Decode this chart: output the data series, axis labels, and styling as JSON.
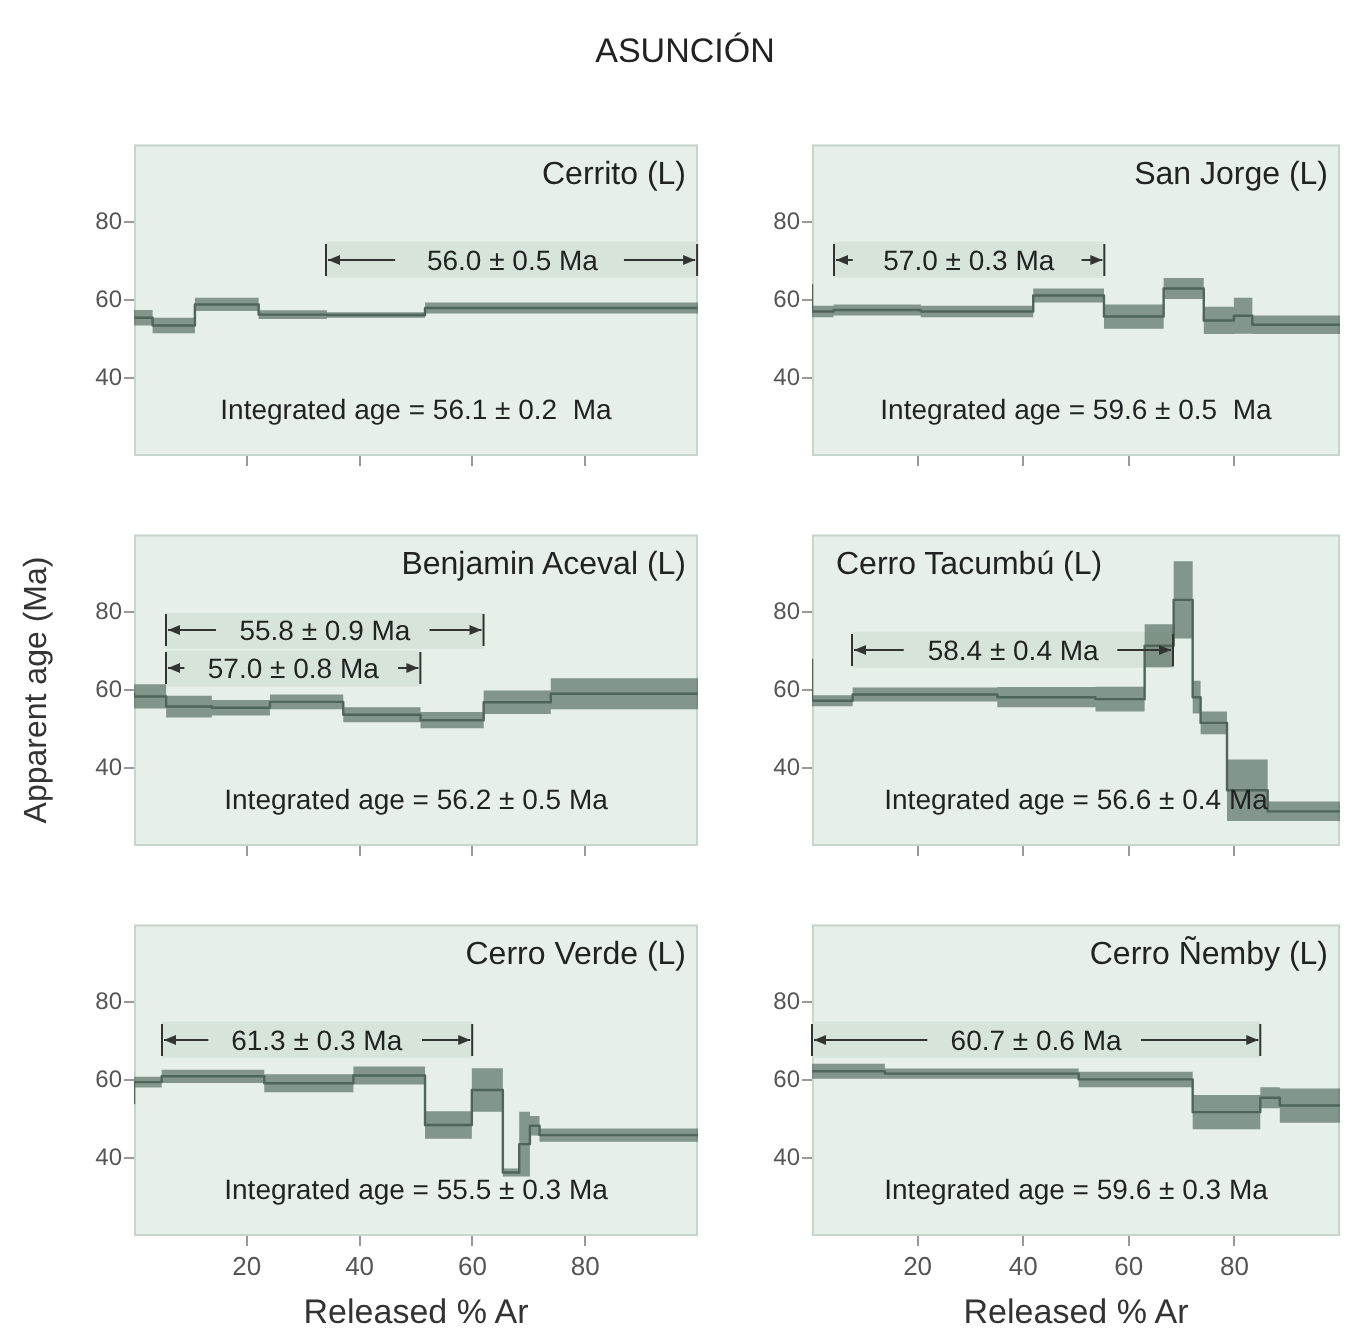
{
  "chart_data": [
    {
      "type": "step",
      "subtitle": "ASUNCIÓN",
      "title": "Cerrito (L)",
      "x": [
        0,
        3.3,
        10.8,
        22.1,
        34.2,
        51.6,
        88.1,
        100
      ],
      "xlim": [
        0,
        100
      ],
      "xticks": [
        20,
        40,
        60,
        80
      ],
      "ylim": [
        20,
        100
      ],
      "yticks": [
        40,
        60,
        80
      ],
      "tick_labels": "y",
      "series": [
        {
          "color": "#4f6659",
          "values": [
            55.7,
            55.5,
            53.5,
            58.9,
            56.3,
            56.2,
            58.0,
            58.0
          ],
          "lower": [
            51.4,
            53.5,
            51.5,
            57.2,
            55.2,
            55.5,
            56.6,
            56.6
          ],
          "upper": [
            60.0,
            57.5,
            55.5,
            60.6,
            57.4,
            56.9,
            59.4,
            59.4
          ]
        }
      ],
      "bands": [
        {
          "axis": "x",
          "from": 34.2,
          "to": 100,
          "label": "56.0 ± 0.5  Ma"
        }
      ],
      "annotations": [
        "Integrated age = 56.1 ± 0.2  Ma"
      ]
    },
    {
      "type": "step",
      "title": "San Jorge (L)",
      "x": [
        0,
        4.1,
        20.6,
        41.9,
        55.3,
        66.6,
        74.2,
        79.9,
        83.4,
        86.9,
        100
      ],
      "xlim": [
        0,
        100
      ],
      "xticks": [
        20,
        40,
        60,
        80
      ],
      "ylim": [
        20,
        100
      ],
      "yticks": [
        40,
        60,
        80
      ],
      "tick_labels": "y",
      "series": [
        {
          "color": "#4f6659",
          "values": [
            64.1,
            57.1,
            57.5,
            57.1,
            61.2,
            55.8,
            63.0,
            54.8,
            56.0,
            53.7,
            53.7
          ],
          "lower": [
            58.1,
            55.6,
            56.1,
            55.6,
            59.4,
            52.7,
            60.3,
            51.3,
            51.4,
            51.3,
            51.3
          ],
          "upper": [
            70.1,
            58.6,
            58.9,
            58.6,
            63.0,
            58.9,
            65.7,
            58.3,
            60.6,
            56.1,
            56.1
          ]
        }
      ],
      "bands": [
        {
          "axis": "x",
          "from": 4.1,
          "to": 55.3,
          "label": "57.0 ± 0.3  Ma"
        }
      ],
      "annotations": [
        "Integrated age = 59.6 ± 0.5  Ma"
      ]
    },
    {
      "type": "step",
      "title": "Benjamin Aceval (L)",
      "ylabel": "Apparent age (Ma)",
      "x": [
        0,
        5.7,
        13.8,
        24.1,
        37.1,
        50.8,
        62.0,
        73.9,
        93.5,
        100
      ],
      "xlim": [
        0,
        100
      ],
      "xticks": [
        20,
        40,
        60,
        80
      ],
      "ylim": [
        20,
        100
      ],
      "yticks": [
        40,
        60,
        80
      ],
      "tick_labels": "y",
      "series": [
        {
          "color": "#4f6659",
          "values": [
            59.3,
            58.4,
            55.8,
            55.5,
            57.0,
            53.7,
            52.3,
            56.9,
            59.1,
            59.1
          ],
          "lower": [
            56.6,
            55.3,
            53.0,
            53.5,
            55.1,
            51.8,
            50.2,
            53.9,
            55.1,
            55.1
          ],
          "upper": [
            62.0,
            61.5,
            58.6,
            57.5,
            58.9,
            55.6,
            54.4,
            59.9,
            63.1,
            63.1
          ]
        }
      ],
      "bands": [
        {
          "axis": "x",
          "from": 5.7,
          "to": 62.0,
          "label": "55.8 ± 0.9 Ma"
        },
        {
          "axis": "x",
          "from": 5.7,
          "to": 50.8,
          "label": "57.0 ± 0.8 Ma"
        }
      ],
      "annotations": [
        "Integrated age = 56.2 ± 0.5 Ma"
      ]
    },
    {
      "type": "step",
      "title": "Cerro Tacumbú (L)",
      "x": [
        0,
        7.7,
        35.1,
        53.7,
        63.0,
        68.5,
        72.1,
        73.6,
        78.6,
        86.3,
        88.0,
        100
      ],
      "xlim": [
        0,
        100
      ],
      "xticks": [
        20,
        40,
        60,
        80
      ],
      "ylim": [
        20,
        100
      ],
      "yticks": [
        40,
        60,
        80
      ],
      "tick_labels": "y",
      "series": [
        {
          "color": "#4f6659",
          "values": [
            68.1,
            57.3,
            58.9,
            58.2,
            57.7,
            71.4,
            83.2,
            58.2,
            51.6,
            34.3,
            28.9,
            28.9
          ],
          "lower": [
            64.1,
            55.9,
            57.1,
            55.6,
            54.5,
            65.9,
            73.3,
            54.0,
            48.7,
            26.4,
            26.4,
            26.4
          ],
          "upper": [
            72.1,
            58.7,
            60.7,
            60.8,
            60.9,
            76.9,
            93.1,
            62.4,
            54.5,
            42.2,
            31.4,
            31.4
          ]
        }
      ],
      "bands": [
        {
          "axis": "x",
          "from": 7.7,
          "to": 68.5,
          "label": "58.4 ± 0.4 Ma"
        }
      ],
      "annotations": [
        "Integrated age = 56.6 ± 0.4 Ma"
      ]
    },
    {
      "type": "step",
      "title": "Cerro Verde (L)",
      "xlabel": "Released % Ar",
      "x": [
        0,
        4.9,
        23.1,
        38.9,
        51.6,
        59.9,
        65.4,
        68.3,
        70.2,
        71.9,
        79.2,
        100
      ],
      "xlim": [
        0,
        100
      ],
      "xticks": [
        20,
        40,
        60,
        80
      ],
      "ylim": [
        20,
        100
      ],
      "yticks": [
        40,
        60,
        80
      ],
      "series": [
        {
          "color": "#4f6659",
          "values": [
            53.8,
            59.5,
            61.0,
            59.2,
            61.2,
            48.5,
            57.5,
            36.3,
            43.6,
            48.3,
            45.9,
            45.9
          ],
          "lower": [
            49.2,
            58.1,
            59.3,
            56.9,
            58.9,
            45.0,
            51.9,
            35.3,
            35.3,
            45.8,
            44.2,
            44.2
          ],
          "upper": [
            58.4,
            60.9,
            62.7,
            61.5,
            63.5,
            52.0,
            63.1,
            37.3,
            51.9,
            50.8,
            47.6,
            47.6
          ]
        }
      ],
      "bands": [
        {
          "axis": "x",
          "from": 4.9,
          "to": 59.9,
          "label": "61.3 ± 0.3 Ma"
        }
      ],
      "annotations": [
        "Integrated age = 55.5 ± 0.3 Ma"
      ]
    },
    {
      "type": "step",
      "title": "Cerro Ñemby (L)",
      "xlabel": "Released % Ar",
      "x": [
        0,
        13.8,
        50.5,
        72.1,
        84.9,
        88.6,
        96.3,
        100
      ],
      "xlim": [
        0,
        100
      ],
      "xticks": [
        20,
        40,
        60,
        80
      ],
      "ylim": [
        20,
        100
      ],
      "yticks": [
        40,
        60,
        80
      ],
      "series": [
        {
          "color": "#4f6659",
          "values": [
            62.2,
            62.3,
            61.7,
            60.2,
            51.8,
            55.5,
            53.5,
            53.5
          ],
          "lower": [
            60.2,
            60.4,
            60.4,
            58.2,
            47.4,
            52.8,
            49.1,
            49.1
          ],
          "upper": [
            64.2,
            64.2,
            63.0,
            62.2,
            56.2,
            58.2,
            57.9,
            57.9
          ]
        }
      ],
      "bands": [
        {
          "axis": "x",
          "from": 0,
          "to": 84.9,
          "label": "60.7 ± 0.6 Ma"
        }
      ],
      "annotations": [
        "Integrated age = 59.6 ± 0.3 Ma"
      ]
    }
  ]
}
